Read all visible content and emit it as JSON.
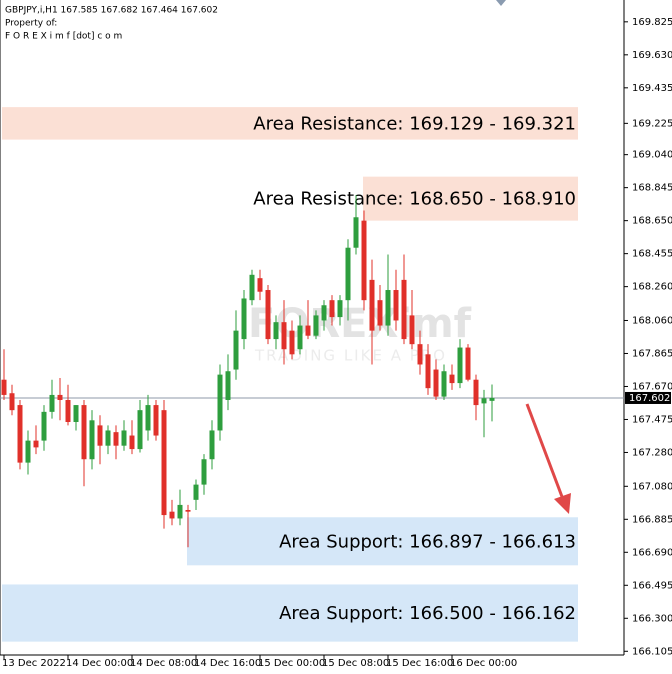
{
  "chart_data": {
    "type": "candlestick",
    "header": "GBPJPY,i,H1  167.585 167.682 167.464 167.602",
    "property_label": "Property of:",
    "property_site": "F O R E X i m f [dot] c o m",
    "watermark": "FOREXimf",
    "watermark_tagline": "TRADING LIKE A PRO",
    "up_color": "#2e9e3e",
    "down_color": "#e0302a",
    "categories": [
      "13 Dec 2022",
      null,
      null,
      null,
      null,
      null,
      null,
      null,
      "14 Dec 00:00",
      null,
      null,
      null,
      null,
      null,
      null,
      null,
      "14 Dec 08:00",
      null,
      null,
      null,
      null,
      null,
      null,
      null,
      "14 Dec 16:00",
      null,
      null,
      null,
      null,
      null,
      null,
      null,
      "15 Dec 00:00",
      null,
      null,
      null,
      null,
      null,
      null,
      null,
      "15 Dec 08:00",
      null,
      null,
      null,
      null,
      null,
      null,
      null,
      "15 Dec 16:00",
      null,
      null,
      null,
      null,
      null,
      null,
      null,
      "16 Dec 00:00",
      null,
      null,
      null,
      null,
      null
    ],
    "open": [
      167.71,
      167.63,
      167.56,
      167.22,
      167.35,
      167.35,
      167.52,
      167.62,
      167.59,
      167.46,
      167.56,
      167.24,
      167.44,
      167.32,
      167.4,
      167.32,
      167.38,
      167.3,
      167.41,
      167.56,
      167.53,
      166.93,
      166.89,
      166.94,
      167.0,
      167.09,
      167.24,
      167.41,
      167.59,
      167.77,
      167.95,
      168.18,
      168.31,
      168.24,
      167.95,
      168.05,
      168.0,
      167.89,
      168.03,
      167.97,
      168.06,
      168.18,
      168.08,
      168.18,
      168.49,
      168.65,
      168.3,
      168.18,
      168.03,
      168.24,
      168.3,
      168.09,
      167.92,
      167.86,
      167.77,
      167.61,
      167.74,
      167.69,
      167.9,
      167.71,
      167.57,
      167.585
    ],
    "high": [
      167.89,
      167.68,
      167.59,
      167.41,
      167.44,
      167.56,
      167.71,
      167.72,
      167.68,
      167.56,
      167.59,
      167.53,
      167.5,
      167.44,
      167.44,
      167.47,
      167.47,
      167.59,
      167.62,
      167.59,
      167.59,
      167.0,
      167.06,
      166.97,
      167.12,
      167.27,
      167.47,
      167.8,
      167.86,
      168.12,
      168.24,
      168.36,
      168.36,
      168.27,
      168.09,
      168.18,
      168.06,
      168.09,
      168.18,
      168.12,
      168.18,
      168.21,
      168.21,
      168.54,
      168.8,
      168.71,
      168.42,
      168.27,
      168.45,
      168.36,
      168.45,
      168.24,
      168.0,
      167.92,
      167.83,
      167.8,
      167.8,
      167.95,
      167.92,
      167.74,
      167.65,
      167.682
    ],
    "low": [
      167.59,
      167.5,
      167.18,
      167.15,
      167.27,
      167.29,
      167.48,
      167.47,
      167.44,
      167.41,
      167.08,
      167.18,
      167.21,
      167.27,
      167.24,
      167.29,
      167.27,
      167.28,
      167.35,
      167.35,
      166.83,
      166.85,
      166.85,
      166.72,
      166.94,
      167.03,
      167.18,
      167.35,
      167.53,
      167.71,
      167.89,
      168.15,
      168.18,
      167.92,
      167.89,
      167.8,
      167.83,
      167.86,
      167.95,
      167.95,
      168.0,
      168.03,
      168.03,
      168.06,
      168.45,
      168.12,
      167.8,
      168.0,
      167.97,
      168.0,
      167.92,
      167.89,
      167.74,
      167.62,
      167.59,
      167.59,
      167.65,
      167.66,
      167.7,
      167.47,
      167.37,
      167.464
    ],
    "close": [
      167.62,
      167.53,
      167.22,
      167.35,
      167.31,
      167.52,
      167.62,
      167.59,
      167.46,
      167.56,
      167.24,
      167.47,
      167.32,
      167.41,
      167.32,
      167.41,
      167.3,
      167.53,
      167.56,
      167.38,
      166.91,
      166.89,
      166.97,
      166.93,
      167.09,
      167.24,
      167.41,
      167.74,
      167.76,
      168.0,
      168.19,
      168.33,
      168.23,
      167.95,
      168.05,
      167.89,
      167.86,
      168.03,
      167.97,
      168.09,
      168.15,
      168.08,
      168.18,
      168.49,
      168.67,
      168.18,
      168.0,
      168.03,
      168.24,
      168.06,
      167.95,
      167.92,
      167.8,
      167.66,
      167.61,
      167.76,
      167.69,
      167.9,
      167.71,
      167.56,
      167.6,
      167.602
    ],
    "ylim": [
      166.083,
      169.954
    ],
    "yticks": [
      169.825,
      {
        "value": 169.63,
        "label": "169.630"
      },
      169.435,
      169.225,
      {
        "value": 169.04,
        "label": "169.040"
      },
      168.845,
      {
        "value": 168.65,
        "label": "168.650"
      },
      168.455,
      {
        "value": 168.26,
        "label": "168.260"
      },
      {
        "value": 168.06,
        "label": "168.060"
      },
      167.865,
      {
        "value": 167.67,
        "label": "167.670"
      },
      167.475,
      {
        "value": 167.28,
        "label": "167.280"
      },
      {
        "value": 167.08,
        "label": "167.080"
      },
      166.885,
      {
        "value": 166.69,
        "label": "166.690"
      },
      166.495,
      {
        "value": 166.3,
        "label": "166.300"
      },
      166.105
    ],
    "current_price": 167.602,
    "zones": [
      {
        "label": "Area Resistance: 169.129 - 169.321",
        "low": 169.129,
        "high": 169.321,
        "color": "#fbe0d5"
      },
      {
        "label": "Area Resistance: 168.650 - 168.910",
        "low": 168.65,
        "high": 168.91,
        "color": "#fbe0d5"
      },
      {
        "label": "Area Support: 166.897 - 166.613",
        "low": 166.613,
        "high": 166.897,
        "color": "#d5e7f8"
      },
      {
        "label": "Area Support: 166.500 - 166.162",
        "low": 166.162,
        "high": 166.5,
        "color": "#d5e7f8"
      }
    ]
  }
}
